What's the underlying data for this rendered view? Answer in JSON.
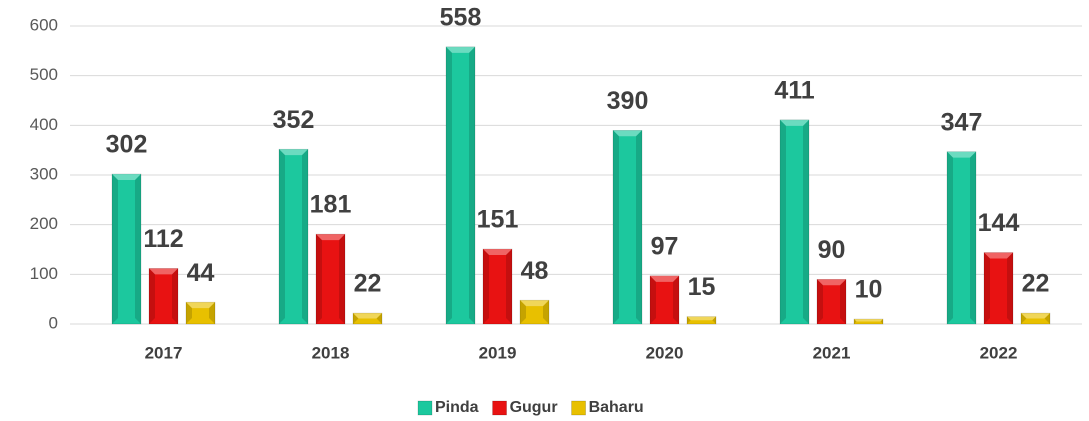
{
  "chart_data": {
    "type": "bar",
    "categories": [
      "2017",
      "2018",
      "2019",
      "2020",
      "2021",
      "2022"
    ],
    "series": [
      {
        "name": "Pinda",
        "color": "#1cc89e",
        "values": [
          302,
          352,
          558,
          390,
          411,
          347
        ]
      },
      {
        "name": "Gugur",
        "color": "#e81212",
        "values": [
          112,
          181,
          151,
          97,
          90,
          144
        ]
      },
      {
        "name": "Baharu",
        "color": "#e8c000",
        "values": [
          44,
          22,
          48,
          15,
          10,
          22
        ]
      }
    ],
    "ylim": [
      0,
      600
    ],
    "yticks": [
      0,
      100,
      200,
      300,
      400,
      500,
      600
    ],
    "grid": true,
    "legend": "bottom"
  }
}
